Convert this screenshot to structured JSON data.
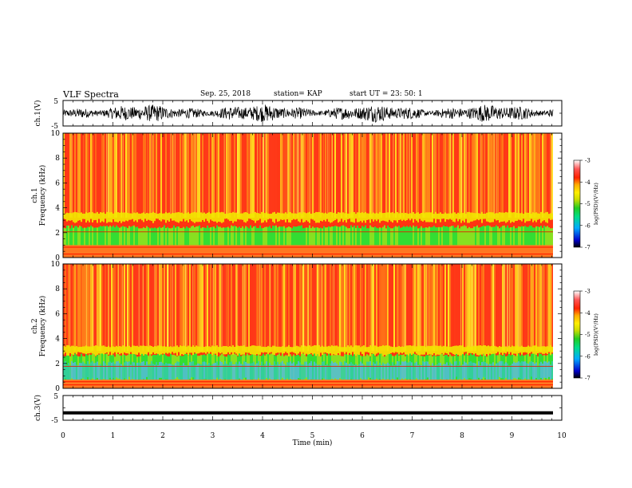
{
  "header": {
    "title": "VLF Spectra",
    "date": "Sep. 25, 2018",
    "station": "station= KAP",
    "start": "start  UT =   23: 50: 1"
  },
  "chart_data": [
    {
      "type": "line",
      "panel": "ch1-waveform",
      "ylabel": "ch.1(V)",
      "ylim": [
        -5,
        5
      ],
      "y_ticks": [
        "5",
        "-5"
      ],
      "description_values": "dense oscillating voltage trace spanning roughly -3 to +3 V",
      "color": "#000000"
    },
    {
      "type": "heatmap",
      "panel": "ch1-spectrogram",
      "ylabel": "ch.1\nFrequency  (kHz)",
      "ylim": [
        0,
        10
      ],
      "y_ticks": [
        "0",
        "2",
        "4",
        "6",
        "8",
        "10"
      ],
      "colorbar": {
        "label": "log(PSD)(V²/Hz)",
        "range": [
          -7,
          -3
        ],
        "ticks": [
          "-3",
          "-4",
          "-5",
          "-6",
          "-7"
        ]
      }
    },
    {
      "type": "heatmap",
      "panel": "ch2-spectrogram",
      "ylabel": "ch.2\nFrequency  (kHz)",
      "ylim": [
        0,
        10
      ],
      "y_ticks": [
        "0",
        "2",
        "4",
        "6",
        "8",
        "10"
      ],
      "colorbar": {
        "label": "log(PSD)(V²/Hz)",
        "range": [
          -7,
          -3
        ],
        "ticks": [
          "-3",
          "-4",
          "-5",
          "-6",
          "-7"
        ]
      }
    },
    {
      "type": "line",
      "panel": "ch3-waveform",
      "ylabel": "ch.3(V)",
      "ylim": [
        -5,
        5
      ],
      "y_ticks": [
        "5",
        "-5"
      ],
      "values_note": "flat line near -2 V",
      "level": -2,
      "color": "#000000"
    }
  ],
  "xaxis": {
    "label": "Time  (min)",
    "xlim": [
      0,
      10
    ],
    "ticks": [
      "0",
      "1",
      "2",
      "3",
      "4",
      "5",
      "6",
      "7",
      "8",
      "9",
      "10"
    ]
  },
  "colormap": [
    "#000000",
    "#0000cc",
    "#00aaff",
    "#00dd88",
    "#22cc22",
    "#ccdd00",
    "#ffee00",
    "#ffaa00",
    "#ff3300",
    "#ff0000",
    "#ffcccc",
    "#ffffff"
  ]
}
